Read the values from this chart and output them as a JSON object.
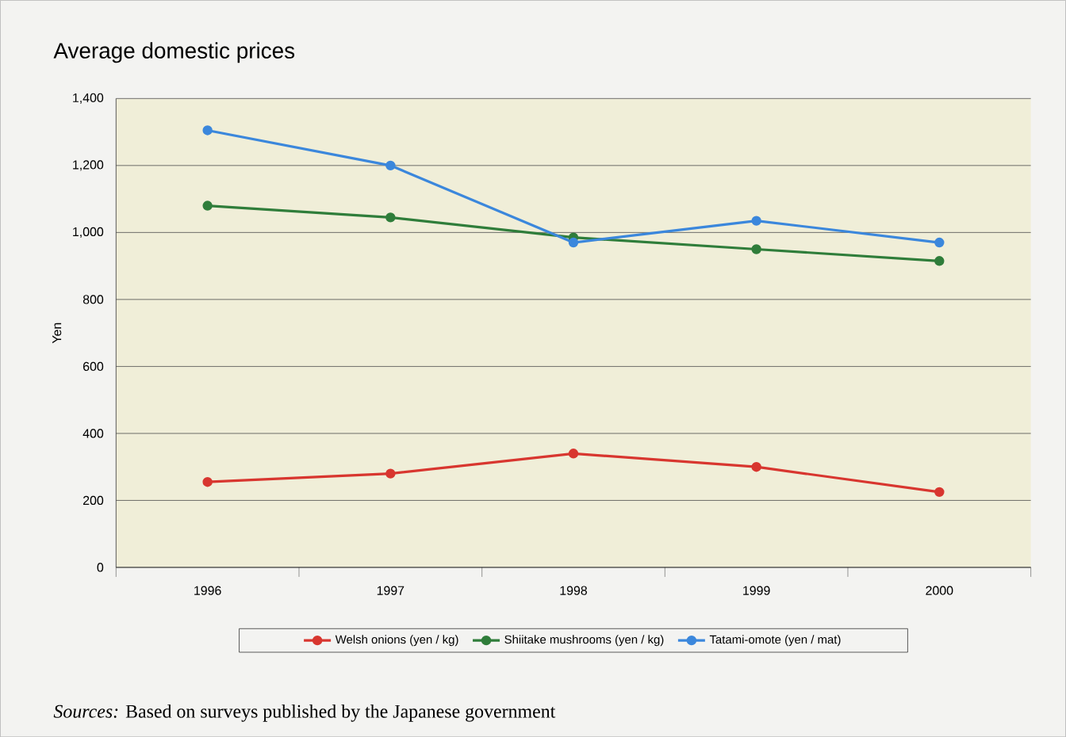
{
  "chart_data": {
    "type": "line",
    "title": "Average domestic prices",
    "ylabel": "Yen",
    "categories": [
      "1996",
      "1997",
      "1998",
      "1999",
      "2000"
    ],
    "series": [
      {
        "name": "Welsh onions (yen / kg)",
        "color": "#d8362f",
        "values": [
          255,
          280,
          340,
          300,
          225
        ]
      },
      {
        "name": "Shiitake mushrooms (yen / kg)",
        "color": "#2f7d3a",
        "values": [
          1080,
          1045,
          985,
          950,
          915
        ]
      },
      {
        "name": "Tatami-omote (yen / mat)",
        "color": "#3b87dc",
        "values": [
          1305,
          1200,
          970,
          1035,
          970
        ]
      }
    ],
    "ylim": [
      0,
      1400
    ],
    "yticks": [
      0,
      {
        "value": 200,
        "label": "200"
      },
      {
        "value": 400,
        "label": "400"
      },
      {
        "value": 600,
        "label": "600"
      },
      {
        "value": 800,
        "label": "800"
      },
      {
        "value": 1000,
        "label": "1,000"
      },
      {
        "value": 1200,
        "label": "1,200"
      },
      {
        "value": 1400,
        "label": "1,400"
      }
    ],
    "grid": "y",
    "legend": "bottom",
    "marker": "circle",
    "line_style": "solid",
    "annotations": [
      "*Sources:* Based on surveys published by the Japanese government"
    ]
  }
}
